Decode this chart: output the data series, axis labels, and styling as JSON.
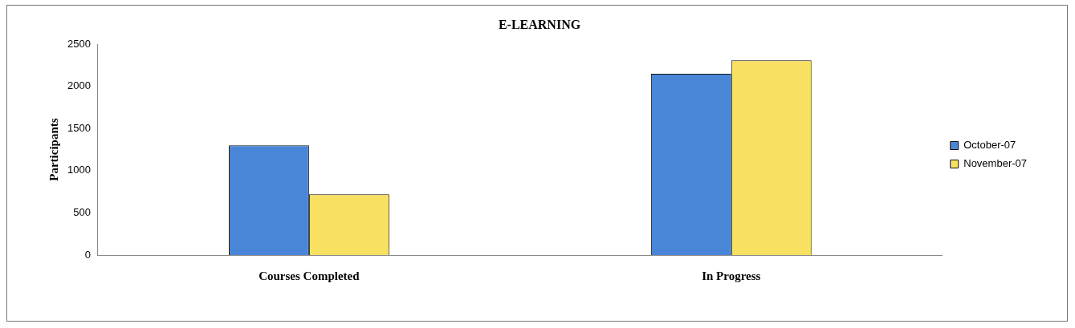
{
  "chart_data": {
    "type": "bar",
    "title": "E-LEARNING",
    "ylabel": "Participants",
    "categories": [
      "Courses Completed",
      "In Progress"
    ],
    "series": [
      {
        "name": "October-07",
        "color": "#4a86d8",
        "values": [
          1300,
          2150
        ]
      },
      {
        "name": "November-07",
        "color": "#f8e060",
        "values": [
          720,
          2310
        ]
      }
    ],
    "ylim": [
      0,
      2500
    ],
    "yticks": [
      0,
      500,
      1000,
      1500,
      2000,
      2500
    ],
    "grid": false,
    "legend": "right"
  }
}
